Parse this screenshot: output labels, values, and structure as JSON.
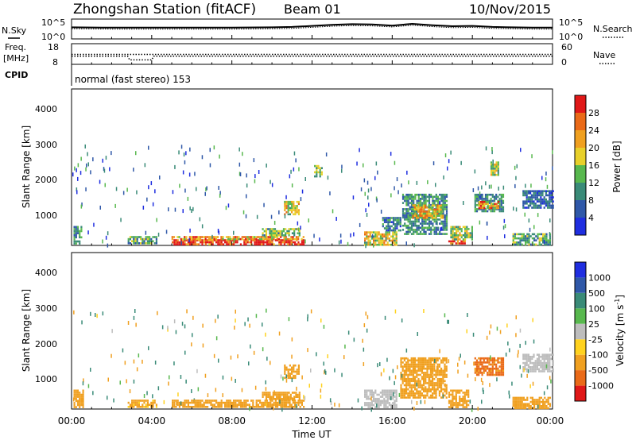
{
  "header": {
    "station": "Zhongshan Station (fitACF)",
    "beam": "Beam 01",
    "date": "10/Nov/2015"
  },
  "noise_panel": {
    "left_label": "N.Sky",
    "right_label": "N.Search",
    "y_ticks_left": [
      "10^5",
      "10^0"
    ],
    "y_ticks_right": [
      "10^5",
      "10^0"
    ]
  },
  "freq_panel": {
    "left_label_1": "Freq.",
    "left_label_2": "[MHz]",
    "right_label": "Nave",
    "y_ticks_left": [
      "18",
      "8"
    ],
    "y_ticks_right": [
      "60",
      "0"
    ]
  },
  "cpid_panel": {
    "label": "CPID",
    "text": "normal (fast stereo) 153"
  },
  "x_axis": {
    "label": "Time UT",
    "ticks": [
      "00:00",
      "04:00",
      "08:00",
      "12:00",
      "16:00",
      "20:00",
      "00:00"
    ]
  },
  "power_panel": {
    "ylabel": "Slant Range [km]",
    "y_ticks": [
      "1000",
      "2000",
      "3000",
      "4000"
    ],
    "colorbar_label": "Power [dB]",
    "colorbar_ticks": [
      "4",
      "8",
      "12",
      "16",
      "20",
      "24",
      "28"
    ]
  },
  "velocity_panel": {
    "ylabel": "Slant Range [km]",
    "y_ticks": [
      "1000",
      "2000",
      "3000",
      "4000"
    ],
    "colorbar_label": "Velocity [m s",
    "colorbar_label_sup": "-1",
    "colorbar_label_end": "]",
    "colorbar_ticks": [
      "1000",
      "500",
      "100",
      "25",
      "-25",
      "-100",
      "-500",
      "-1000"
    ]
  },
  "chart_data": [
    {
      "type": "heatmap",
      "title": "Power [dB]",
      "xlabel": "Time UT",
      "ylabel": "Slant Range [km]",
      "xlim_hours": [
        0,
        24
      ],
      "ylim_km": [
        180,
        4500
      ],
      "colorbar_range": [
        0,
        32
      ],
      "colors": [
        "#1f2ee0",
        "#2f58a8",
        "#3a8b78",
        "#58b84e",
        "#e8d02a",
        "#f0a020",
        "#ea6a18",
        "#e01818"
      ],
      "patches": [
        {
          "t0": 5.0,
          "t1": 11.6,
          "r0": 190,
          "r1": 330,
          "value": 30
        },
        {
          "t0": 4.9,
          "t1": 11.6,
          "r0": 330,
          "r1": 420,
          "value": 22
        },
        {
          "t0": 9.5,
          "t1": 11.4,
          "r0": 420,
          "r1": 640,
          "value": 14
        },
        {
          "t0": 0.1,
          "t1": 0.5,
          "r0": 200,
          "r1": 700,
          "value": 10
        },
        {
          "t0": 2.8,
          "t1": 4.2,
          "r0": 220,
          "r1": 420,
          "value": 12
        },
        {
          "t0": 14.6,
          "t1": 16.2,
          "r0": 200,
          "r1": 550,
          "value": 18
        },
        {
          "t0": 15.5,
          "t1": 16.4,
          "r0": 550,
          "r1": 950,
          "value": 8
        },
        {
          "t0": 16.5,
          "t1": 18.7,
          "r0": 500,
          "r1": 1600,
          "value": 10
        },
        {
          "t0": 17.0,
          "t1": 18.5,
          "r0": 950,
          "r1": 1300,
          "value": 20
        },
        {
          "t0": 18.8,
          "t1": 19.6,
          "r0": 190,
          "r1": 300,
          "value": 30
        },
        {
          "t0": 18.9,
          "t1": 20.0,
          "r0": 300,
          "r1": 700,
          "value": 16
        },
        {
          "t0": 20.1,
          "t1": 21.5,
          "r0": 1100,
          "r1": 1600,
          "value": 10
        },
        {
          "t0": 20.3,
          "t1": 21.3,
          "r0": 1200,
          "r1": 1400,
          "value": 24
        },
        {
          "t0": 22.0,
          "t1": 23.9,
          "r0": 200,
          "r1": 500,
          "value": 12
        },
        {
          "t0": 22.5,
          "t1": 24.0,
          "r0": 1200,
          "r1": 1700,
          "value": 7
        },
        {
          "t0": 10.6,
          "t1": 11.3,
          "r0": 1000,
          "r1": 1400,
          "value": 18
        },
        {
          "t0": 12.1,
          "t1": 12.5,
          "r0": 2100,
          "r1": 2400,
          "value": 14
        },
        {
          "t0": 20.9,
          "t1": 21.3,
          "r0": 2100,
          "r1": 2500,
          "value": 16
        }
      ]
    },
    {
      "type": "heatmap",
      "title": "Velocity [m s-1]",
      "xlabel": "Time UT",
      "ylabel": "Slant Range [km]",
      "xlim_hours": [
        0,
        24
      ],
      "ylim_km": [
        180,
        4500
      ],
      "colorbar_range": [
        -1000,
        1000
      ],
      "colors": [
        "#e01818",
        "#ea6a18",
        "#f0a020",
        "#ffd21e",
        "#bdbdbd",
        "#58b84e",
        "#3a8b78",
        "#2f58a8",
        "#1f2ee0"
      ],
      "patches": [
        {
          "t0": 5.0,
          "t1": 11.6,
          "r0": 190,
          "r1": 420,
          "value": -200
        },
        {
          "t0": 9.5,
          "t1": 11.4,
          "r0": 420,
          "r1": 640,
          "value": -300
        },
        {
          "t0": 0.1,
          "t1": 0.6,
          "r0": 200,
          "r1": 700,
          "value": -150
        },
        {
          "t0": 2.8,
          "t1": 4.2,
          "r0": 220,
          "r1": 420,
          "value": -120
        },
        {
          "t0": 14.6,
          "t1": 16.2,
          "r0": 200,
          "r1": 700,
          "value": 0
        },
        {
          "t0": 16.4,
          "t1": 18.7,
          "r0": 500,
          "r1": 1600,
          "value": -300
        },
        {
          "t0": 18.8,
          "t1": 19.8,
          "r0": 190,
          "r1": 700,
          "value": -250
        },
        {
          "t0": 20.1,
          "t1": 21.5,
          "r0": 1100,
          "r1": 1600,
          "value": -600
        },
        {
          "t0": 22.5,
          "t1": 24.0,
          "r0": 1200,
          "r1": 1700,
          "value": 0
        },
        {
          "t0": 22.0,
          "t1": 23.9,
          "r0": 200,
          "r1": 500,
          "value": -150
        },
        {
          "t0": 10.6,
          "t1": 11.3,
          "r0": 1000,
          "r1": 1400,
          "value": -250
        }
      ]
    },
    {
      "type": "line",
      "title": "N.Sky / N.Search",
      "xlim_hours": [
        0,
        24
      ],
      "series": [
        {
          "name": "N.Sky",
          "x": [
            0,
            2,
            4,
            6,
            8,
            10,
            11,
            12,
            13,
            14,
            15,
            16,
            17,
            18,
            19,
            20,
            21,
            22,
            23,
            24
          ],
          "y": [
            3.1,
            3.0,
            3.0,
            3.0,
            3.0,
            3.1,
            3.2,
            3.5,
            3.8,
            4.0,
            3.9,
            3.6,
            4.1,
            3.7,
            3.4,
            3.5,
            3.2,
            3.1,
            3.0,
            3.0
          ]
        },
        {
          "name": "N.Search",
          "x": [
            0,
            2,
            4,
            6,
            8,
            10,
            11,
            12,
            13,
            14,
            15,
            16,
            17,
            18,
            19,
            20,
            21,
            22,
            23,
            24
          ],
          "y": [
            2.7,
            2.6,
            2.6,
            2.6,
            2.6,
            2.7,
            2.8,
            3.1,
            3.4,
            3.6,
            3.5,
            3.2,
            3.7,
            3.3,
            3.0,
            3.1,
            2.8,
            2.7,
            2.6,
            2.6
          ]
        }
      ]
    },
    {
      "type": "line",
      "title": "Freq. [MHz] / Nave",
      "xlim_hours": [
        0,
        24
      ],
      "series": [
        {
          "name": "Freq.",
          "x": [
            0,
            2.8,
            2.9,
            4.0,
            4.1,
            24
          ],
          "y": [
            12,
            12,
            10,
            10,
            12,
            12
          ]
        },
        {
          "name": "Nave",
          "x": [
            0,
            24
          ],
          "y": [
            30,
            30
          ]
        }
      ]
    }
  ]
}
